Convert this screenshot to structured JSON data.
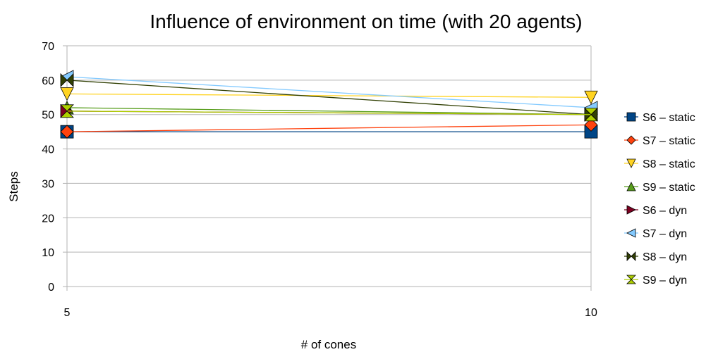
{
  "chart_data": {
    "type": "line",
    "title": "Influence of environment on time (with 20 agents)",
    "xlabel": "# of cones",
    "ylabel": "Steps",
    "x": [
      5,
      10
    ],
    "x_tick_labels": [
      "5",
      "10"
    ],
    "ylim": [
      0,
      70
    ],
    "y_ticks": [
      0,
      10,
      20,
      30,
      40,
      50,
      60,
      70
    ],
    "grid": "horizontal",
    "legend_position": "right",
    "series": [
      {
        "name": "S6 – static",
        "values": [
          45,
          45
        ],
        "color": "#004586",
        "marker": "square"
      },
      {
        "name": "S7 – static",
        "values": [
          45,
          47
        ],
        "color": "#ff420e",
        "marker": "diamond"
      },
      {
        "name": "S8 – static",
        "values": [
          56,
          55
        ],
        "color": "#ffd320",
        "marker": "triangle-down"
      },
      {
        "name": "S9 – static",
        "values": [
          52,
          50
        ],
        "color": "#579d1c",
        "marker": "triangle-up"
      },
      {
        "name": "S6 – dyn",
        "values": [
          51,
          50
        ],
        "color": "#7e0021",
        "marker": "triangle-right"
      },
      {
        "name": "S7 – dyn",
        "values": [
          61,
          52
        ],
        "color": "#83caff",
        "marker": "triangle-left"
      },
      {
        "name": "S8 – dyn",
        "values": [
          60,
          50
        ],
        "color": "#314004",
        "marker": "bowtie"
      },
      {
        "name": "S9 – dyn",
        "values": [
          51,
          50
        ],
        "color": "#aecf00",
        "marker": "hourglass"
      }
    ]
  }
}
